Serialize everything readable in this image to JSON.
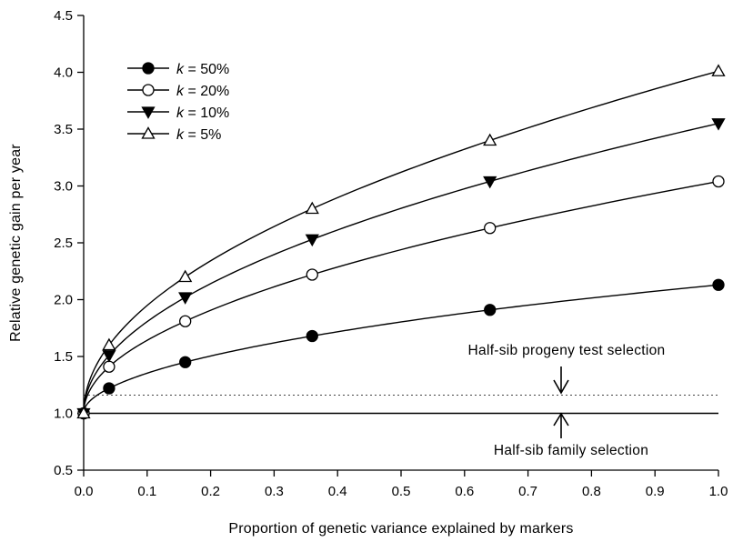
{
  "chart_data": {
    "type": "line",
    "xlabel": "Proportion of genetic variance explained by markers",
    "ylabel": "Relative genetic gain per year",
    "xlim": [
      0.0,
      1.0
    ],
    "ylim": [
      0.5,
      4.5
    ],
    "x_ticks": [
      "0.0",
      "0.1",
      "0.2",
      "0.3",
      "0.4",
      "0.5",
      "0.6",
      "0.7",
      "0.8",
      "0.9",
      "1.0"
    ],
    "y_ticks": [
      "0.5",
      "1.0",
      "1.5",
      "2.0",
      "2.5",
      "3.0",
      "3.5",
      "4.0",
      "4.5"
    ],
    "grid": false,
    "legend_position": "top-left",
    "x": [
      0.0,
      0.04,
      0.16,
      0.36,
      0.64,
      1.0
    ],
    "series": [
      {
        "name": "k = 50%",
        "name_var": "k",
        "name_rest": " = 50%",
        "marker": "filled-circle",
        "values": [
          1.0,
          1.22,
          1.45,
          1.68,
          1.91,
          2.13
        ]
      },
      {
        "name": "k = 20%",
        "name_var": "k",
        "name_rest": " = 20%",
        "marker": "open-circle",
        "values": [
          1.0,
          1.41,
          1.81,
          2.22,
          2.63,
          3.04
        ]
      },
      {
        "name": "k = 10%",
        "name_var": "k",
        "name_rest": " = 10%",
        "marker": "filled-triangle-down",
        "values": [
          1.0,
          1.51,
          2.02,
          2.53,
          3.04,
          3.55
        ]
      },
      {
        "name": "k = 5%",
        "name_var": "k",
        "name_rest": " = 5%",
        "marker": "open-triangle-up",
        "values": [
          1.0,
          1.6,
          2.2,
          2.8,
          3.4,
          4.01
        ]
      }
    ],
    "reference_lines": [
      {
        "label": "Half-sib progeny test selection",
        "y": 1.16,
        "style": "dotted"
      },
      {
        "label": "Half-sib family selection",
        "y": 1.0,
        "style": "solid"
      }
    ]
  }
}
